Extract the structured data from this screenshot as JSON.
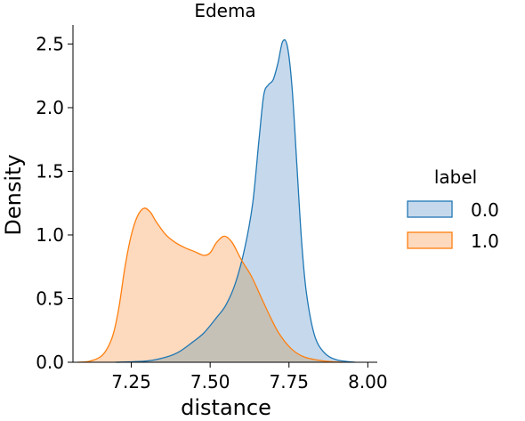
{
  "chart_data": {
    "type": "area",
    "title": "Edema",
    "xlabel": "distance",
    "ylabel": "Density",
    "xlim": [
      7.065,
      8.03
    ],
    "ylim": [
      0,
      2.65
    ],
    "x_ticks": [
      7.25,
      7.5,
      7.75,
      8.0
    ],
    "x_tick_labels": [
      "7.25",
      "7.50",
      "7.75",
      "8.00"
    ],
    "y_ticks": [
      0.0,
      0.5,
      1.0,
      1.5,
      2.0,
      2.5
    ],
    "y_tick_labels": [
      "0.0",
      "0.5",
      "1.0",
      "1.5",
      "2.0",
      "2.5"
    ],
    "grid": false,
    "legend": {
      "title": "label",
      "placement": "right"
    },
    "series": [
      {
        "name": "0.0",
        "color": "#1f77b4",
        "fill": "#c6d9ec",
        "points": [
          [
            7.2,
            0.0
          ],
          [
            7.3,
            0.01
          ],
          [
            7.36,
            0.04
          ],
          [
            7.4,
            0.08
          ],
          [
            7.44,
            0.15
          ],
          [
            7.48,
            0.23
          ],
          [
            7.52,
            0.35
          ],
          [
            7.55,
            0.45
          ],
          [
            7.58,
            0.62
          ],
          [
            7.61,
            0.9
          ],
          [
            7.635,
            1.25
          ],
          [
            7.655,
            1.75
          ],
          [
            7.67,
            2.1
          ],
          [
            7.685,
            2.18
          ],
          [
            7.7,
            2.22
          ],
          [
            7.715,
            2.35
          ],
          [
            7.73,
            2.52
          ],
          [
            7.745,
            2.48
          ],
          [
            7.76,
            2.15
          ],
          [
            7.775,
            1.55
          ],
          [
            7.79,
            0.95
          ],
          [
            7.805,
            0.55
          ],
          [
            7.83,
            0.22
          ],
          [
            7.86,
            0.08
          ],
          [
            7.9,
            0.02
          ],
          [
            7.96,
            0.0
          ]
        ]
      },
      {
        "name": "1.0",
        "color": "#ff7f0e",
        "fill": "#fdd9bd",
        "points": [
          [
            7.08,
            0.0
          ],
          [
            7.12,
            0.01
          ],
          [
            7.16,
            0.06
          ],
          [
            7.19,
            0.2
          ],
          [
            7.21,
            0.42
          ],
          [
            7.23,
            0.75
          ],
          [
            7.25,
            1.0
          ],
          [
            7.27,
            1.15
          ],
          [
            7.29,
            1.21
          ],
          [
            7.31,
            1.18
          ],
          [
            7.33,
            1.1
          ],
          [
            7.36,
            1.0
          ],
          [
            7.39,
            0.94
          ],
          [
            7.42,
            0.9
          ],
          [
            7.45,
            0.87
          ],
          [
            7.48,
            0.84
          ],
          [
            7.5,
            0.86
          ],
          [
            7.52,
            0.94
          ],
          [
            7.545,
            0.99
          ],
          [
            7.57,
            0.94
          ],
          [
            7.6,
            0.8
          ],
          [
            7.63,
            0.68
          ],
          [
            7.66,
            0.52
          ],
          [
            7.69,
            0.36
          ],
          [
            7.72,
            0.22
          ],
          [
            7.76,
            0.1
          ],
          [
            7.8,
            0.04
          ],
          [
            7.86,
            0.01
          ],
          [
            7.92,
            0.0
          ]
        ]
      }
    ]
  }
}
